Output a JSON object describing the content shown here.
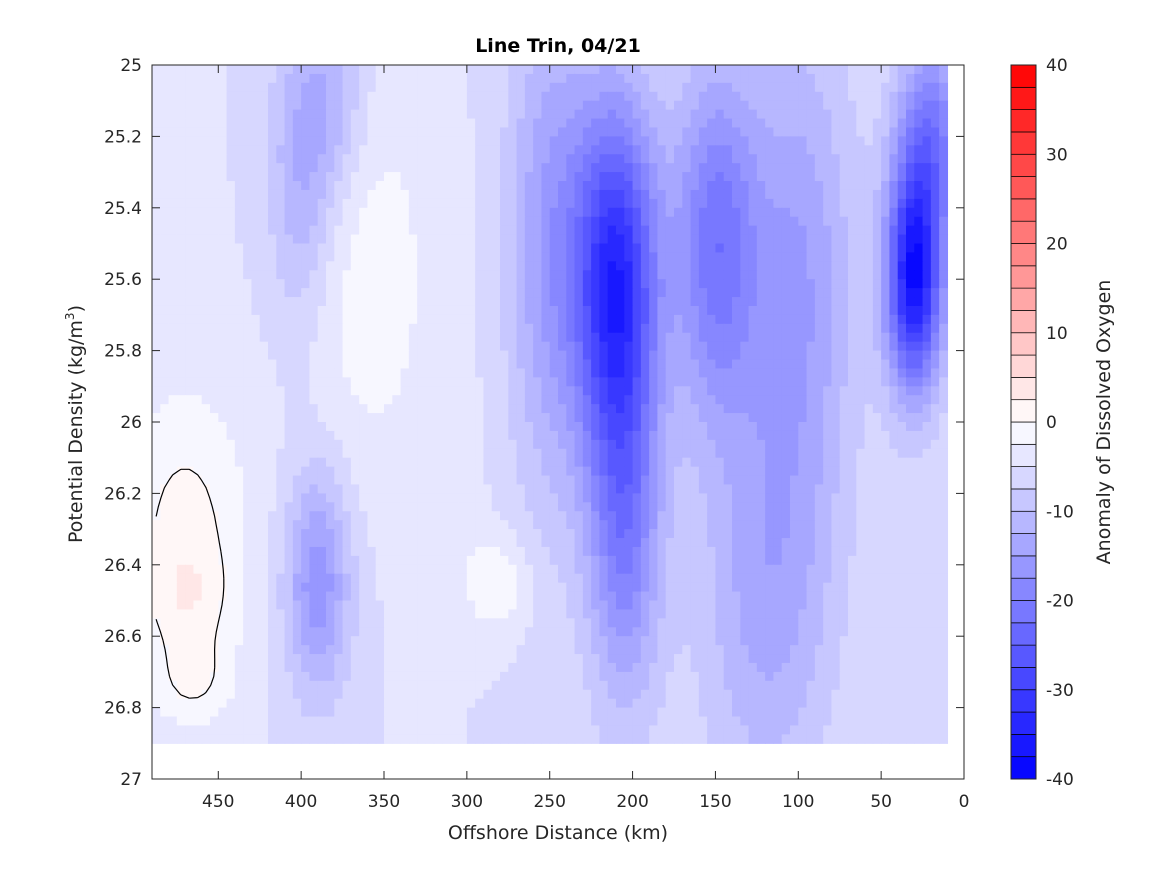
{
  "chart_data": {
    "type": "heatmap",
    "title": "Line Trin, 04/21",
    "xlabel": "Offshore Distance (km)",
    "ylabel_prefix": "Potential Density (kg/m",
    "ylabel_sup": "3",
    "ylabel_suffix": ")",
    "colorbar_label": "Anomaly of Dissolved Oxygen",
    "xlim": [
      490,
      0
    ],
    "ylim": [
      25,
      27
    ],
    "x_reversed": true,
    "y_reversed": true,
    "x_ticks": [
      450,
      400,
      350,
      300,
      250,
      200,
      150,
      100,
      50,
      0
    ],
    "y_ticks": [
      25,
      25.2,
      25.4,
      25.6,
      25.8,
      26,
      26.2,
      26.4,
      26.6,
      26.8,
      27
    ],
    "y_tick_labels": [
      "25",
      "25.2",
      "25.4",
      "25.6",
      "25.8",
      "26",
      "26.2",
      "26.4",
      "26.6",
      "26.8",
      "27"
    ],
    "colorbar_range": [
      -40,
      40
    ],
    "colorbar_ticks": [
      40,
      30,
      20,
      10,
      0,
      -10,
      -20,
      -30,
      -40
    ],
    "contour_step": 2.5,
    "zero_contour_color": "#000000",
    "colormap": {
      "negative": "#0000ff",
      "zero": "#ffffff",
      "positive": "#ff0000"
    },
    "grid": false,
    "data_x_range": [
      490,
      10
    ],
    "data_y_range": [
      25,
      26.9
    ],
    "features": [
      {
        "x": 470,
        "y": 26.3,
        "sx": 28,
        "sy": 0.28,
        "a": 6
      },
      {
        "x": 468,
        "y": 26.5,
        "sx": 18,
        "sy": 0.1,
        "a": 3
      },
      {
        "x": 465,
        "y": 26.73,
        "sx": 18,
        "sy": 0.09,
        "a": 4
      },
      {
        "x": 310,
        "y": 26.1,
        "sx": 12,
        "sy": 0.15,
        "a": 2
      },
      {
        "x": 283,
        "y": 26.45,
        "sx": 14,
        "sy": 0.1,
        "a": 5
      },
      {
        "x": 210,
        "y": 25.6,
        "sx": 18,
        "sy": 0.35,
        "a": -28
      },
      {
        "x": 205,
        "y": 26.3,
        "sx": 16,
        "sy": 0.35,
        "a": -14
      },
      {
        "x": 150,
        "y": 25.5,
        "sx": 18,
        "sy": 0.35,
        "a": -16
      },
      {
        "x": 100,
        "y": 25.6,
        "sx": 24,
        "sy": 0.5,
        "a": -10
      },
      {
        "x": 30,
        "y": 25.6,
        "sx": 12,
        "sy": 0.22,
        "a": -32
      },
      {
        "x": 20,
        "y": 25.2,
        "sx": 14,
        "sy": 0.2,
        "a": -15
      },
      {
        "x": 390,
        "y": 26.45,
        "sx": 14,
        "sy": 0.22,
        "a": -12
      },
      {
        "x": 400,
        "y": 25.3,
        "sx": 14,
        "sy": 0.3,
        "a": -8
      },
      {
        "x": 380,
        "y": 25.1,
        "sx": 14,
        "sy": 0.2,
        "a": -6
      },
      {
        "x": 250,
        "y": 25.5,
        "sx": 18,
        "sy": 0.5,
        "a": -10
      },
      {
        "x": 120,
        "y": 26.5,
        "sx": 28,
        "sy": 0.4,
        "a": -8
      },
      {
        "x": 360,
        "y": 25.6,
        "sx": 30,
        "sy": 0.4,
        "a": 4
      }
    ],
    "background_anomaly": -5
  }
}
